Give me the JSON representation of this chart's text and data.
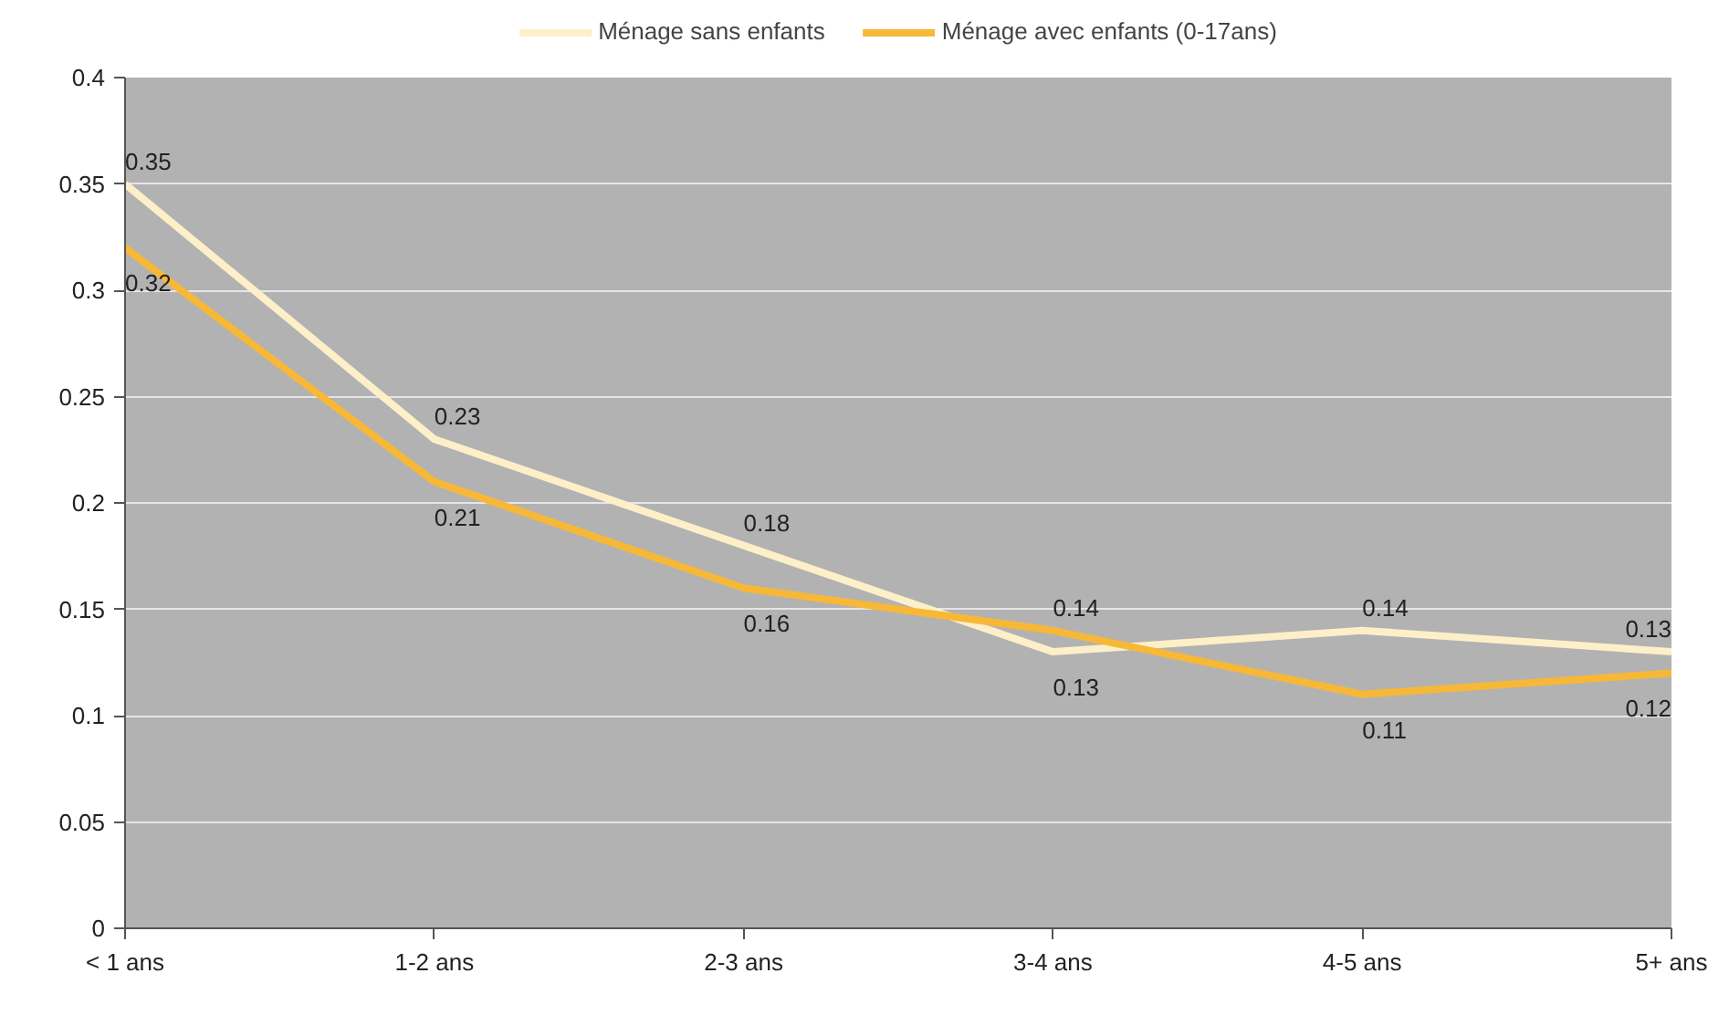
{
  "chart_data": {
    "type": "line",
    "categories": [
      "< 1 ans",
      "1-2 ans",
      "2-3 ans",
      "3-4 ans",
      "4-5 ans",
      "5+ ans"
    ],
    "series": [
      {
        "name": "Ménage sans enfants",
        "color": "#fdefc7",
        "values": [
          0.35,
          0.23,
          0.18,
          0.13,
          0.14,
          0.13
        ]
      },
      {
        "name": "Ménage avec enfants (0-17ans)",
        "color": "#f7b838",
        "values": [
          0.32,
          0.21,
          0.16,
          0.14,
          0.11,
          0.12
        ]
      }
    ],
    "ylim": [
      0,
      0.4
    ],
    "yticks": [
      0,
      0.05,
      0.1,
      0.15,
      0.2,
      0.25,
      0.3,
      0.35,
      0.4
    ],
    "grid": "y",
    "legend": "top",
    "data_labels": true
  }
}
